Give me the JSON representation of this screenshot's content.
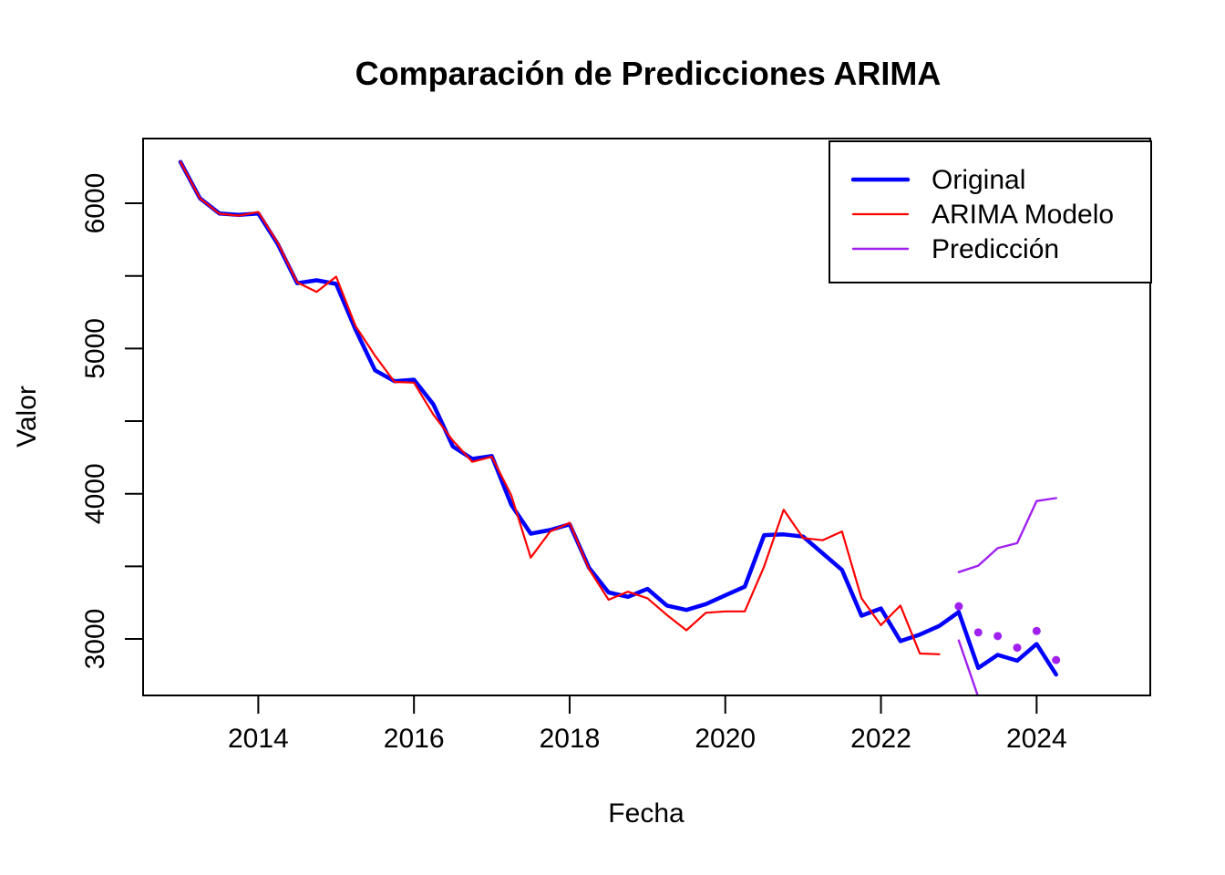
{
  "title": "Comparación de Predicciones ARIMA",
  "x_axis_label": "Fecha",
  "y_axis_label": "Valor",
  "legend": {
    "position": "top-right",
    "items": [
      {
        "label": "Original",
        "color": "#0000FF",
        "lwd": 4.5
      },
      {
        "label": "ARIMA Modelo",
        "color": "#FF0000",
        "lwd": 2.2
      },
      {
        "label": "Predicción",
        "color": "#A020F0",
        "lwd": 2.4
      }
    ]
  },
  "chart_data": {
    "type": "line",
    "title": "Comparación de Predicciones ARIMA",
    "xlabel": "Fecha",
    "ylabel": "Valor",
    "grid": false,
    "legend_position": "top-right",
    "xlim": [
      2012.52,
      2025.46
    ],
    "ylim": [
      2611,
      6446
    ],
    "x_ticks": [
      2014,
      2016,
      2018,
      2020,
      2022,
      2024
    ],
    "x_tick_labels": [
      "2014",
      "2016",
      "2018",
      "2020",
      "2022",
      "2024"
    ],
    "y_ticks": [
      3000,
      3500,
      4000,
      4500,
      5000,
      5500,
      6000
    ],
    "y_tick_labels": [
      "3000",
      "",
      "4000",
      "",
      "5000",
      "",
      "6000"
    ],
    "series": [
      {
        "id": "original",
        "name": "Original",
        "color": "#0000FF",
        "lwd": 4.5,
        "x": [
          2013.0,
          2013.25,
          2013.5,
          2013.75,
          2014.0,
          2014.25,
          2014.5,
          2014.75,
          2015.0,
          2015.25,
          2015.5,
          2015.75,
          2016.0,
          2016.25,
          2016.5,
          2016.75,
          2017.0,
          2017.25,
          2017.5,
          2017.75,
          2018.0,
          2018.25,
          2018.5,
          2018.75,
          2019.0,
          2019.25,
          2019.5,
          2019.75,
          2020.0,
          2020.25,
          2020.5,
          2020.75,
          2021.0,
          2021.25,
          2021.5,
          2021.75,
          2022.0,
          2022.25,
          2022.5,
          2022.75,
          2023.0,
          2023.25,
          2023.5,
          2023.75,
          2024.0,
          2024.25
        ],
        "values": [
          6285,
          6035,
          5930,
          5920,
          5930,
          5720,
          5450,
          5470,
          5445,
          5130,
          4850,
          4775,
          4785,
          4615,
          4325,
          4240,
          4260,
          3925,
          3725,
          3750,
          3790,
          3490,
          3320,
          3290,
          3345,
          3230,
          3200,
          3240,
          3300,
          3360,
          3715,
          3720,
          3705,
          3590,
          3475,
          3160,
          3210,
          2985,
          3030,
          3090,
          3185,
          2800,
          2890,
          2850,
          2965,
          2755
        ]
      },
      {
        "id": "arima-modelo",
        "name": "ARIMA Modelo",
        "color": "#FF0000",
        "lwd": 2.2,
        "x": [
          2013.0,
          2013.25,
          2013.5,
          2013.75,
          2014.0,
          2014.25,
          2014.5,
          2014.75,
          2015.0,
          2015.25,
          2015.5,
          2015.75,
          2016.0,
          2016.25,
          2016.5,
          2016.75,
          2017.0,
          2017.25,
          2017.5,
          2017.75,
          2018.0,
          2018.25,
          2018.5,
          2018.75,
          2019.0,
          2019.25,
          2019.5,
          2019.75,
          2020.0,
          2020.25,
          2020.5,
          2020.75,
          2021.0,
          2021.25,
          2021.5,
          2021.75,
          2022.0,
          2022.25,
          2022.5,
          2022.75
        ],
        "values": [
          6285,
          6035,
          5928,
          5915,
          5940,
          5728,
          5455,
          5390,
          5495,
          5155,
          4950,
          4770,
          4765,
          4545,
          4365,
          4220,
          4255,
          3990,
          3560,
          3740,
          3800,
          3480,
          3270,
          3325,
          3280,
          3165,
          3060,
          3180,
          3190,
          3190,
          3500,
          3890,
          3695,
          3680,
          3740,
          3280,
          3095,
          3230,
          2900,
          2895
        ]
      },
      {
        "id": "prediccion-linea",
        "name": "Predicción",
        "color": "#A020F0",
        "lwd": 2.4,
        "x": [
          2023.0,
          2023.25,
          2023.5,
          2023.75,
          2024.0,
          2024.25
        ],
        "values": [
          3460,
          3505,
          3625,
          3660,
          3950,
          3970
        ]
      },
      {
        "id": "prediccion-linea-inferior",
        "name": "Predicción",
        "color": "#A020F0",
        "lwd": 2.4,
        "x": [
          2023.0,
          2023.25
        ],
        "values": [
          2990,
          2600
        ]
      },
      {
        "id": "prediccion-puntos",
        "name": "Predicción",
        "color": "#A020F0",
        "marker": "circle",
        "marker_r": 4.5,
        "x": [
          2023.0,
          2023.25,
          2023.5,
          2023.75,
          2024.0,
          2024.25
        ],
        "values": [
          3225,
          3045,
          3020,
          2940,
          3055,
          2855
        ]
      }
    ]
  }
}
